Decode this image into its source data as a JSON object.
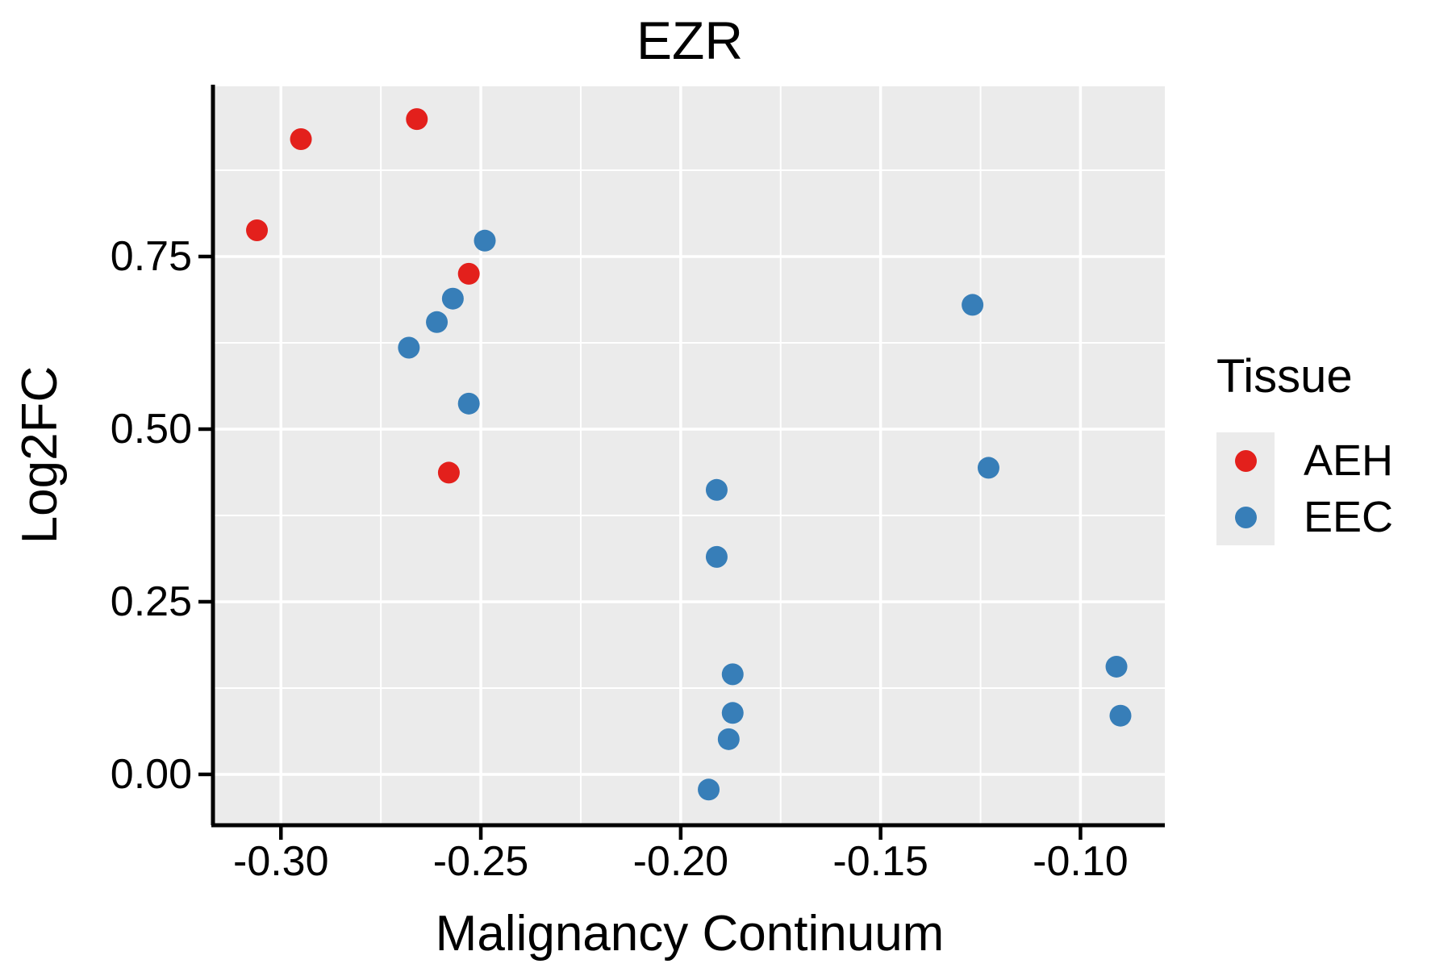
{
  "page": {
    "background": "#FFFFFF"
  },
  "chart_data": {
    "type": "scatter",
    "title": "EZR",
    "xlabel": "Malignancy Continuum",
    "ylabel": "Log2FC",
    "x_ticks": [
      -0.3,
      -0.25,
      -0.2,
      -0.15,
      -0.1
    ],
    "x_tick_labels": [
      "-0.30",
      "-0.25",
      "-0.20",
      "-0.15",
      "-0.10"
    ],
    "y_ticks": [
      0.0,
      0.25,
      0.5,
      0.75
    ],
    "y_tick_labels": [
      "0.00",
      "0.25",
      "0.50",
      "0.75"
    ],
    "xlim": [
      -0.3166,
      -0.0789
    ],
    "ylim": [
      -0.0713,
      0.9965
    ],
    "grid": {
      "panel_background": "#EBEBEB",
      "major_color": "#FFFFFF",
      "minor_color": "#FFFFFF"
    },
    "axis_color": "#000000",
    "point_radius_px": 13.5,
    "legend": {
      "title": "Tissue",
      "position": "right",
      "entries": [
        {
          "label": "AEH",
          "color": "#E3201C"
        },
        {
          "label": "EEC",
          "color": "#377EB8"
        }
      ]
    },
    "series": [
      {
        "name": "AEH",
        "color": "#E3201C",
        "points": [
          [
            -0.306,
            0.788
          ],
          [
            -0.295,
            0.92
          ],
          [
            -0.266,
            0.949
          ],
          [
            -0.258,
            0.437
          ],
          [
            -0.253,
            0.725
          ]
        ]
      },
      {
        "name": "EEC",
        "color": "#377EB8",
        "points": [
          [
            -0.268,
            0.618
          ],
          [
            -0.261,
            0.655
          ],
          [
            -0.257,
            0.689
          ],
          [
            -0.253,
            0.537
          ],
          [
            -0.249,
            0.773
          ],
          [
            -0.193,
            -0.022
          ],
          [
            -0.191,
            0.412
          ],
          [
            -0.191,
            0.315
          ],
          [
            -0.188,
            0.051
          ],
          [
            -0.187,
            0.145
          ],
          [
            -0.187,
            0.089
          ],
          [
            -0.127,
            0.68
          ],
          [
            -0.123,
            0.444
          ],
          [
            -0.091,
            0.156
          ],
          [
            -0.09,
            0.085
          ]
        ]
      }
    ]
  }
}
